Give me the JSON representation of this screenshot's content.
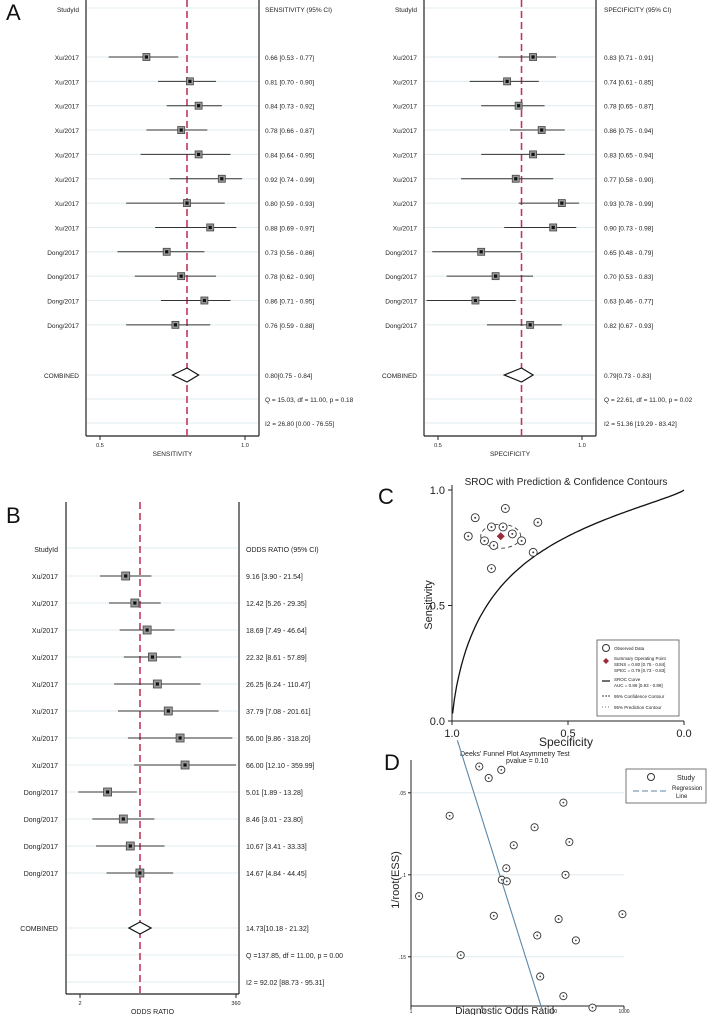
{
  "panels": {
    "A": "A",
    "B": "B",
    "C": "C",
    "D": "D"
  },
  "chart_data": [
    {
      "id": "sens",
      "type": "forest",
      "col_study": "StudyId",
      "col_ci": "SENSITIVITY (95% CI)",
      "xlabel": "SENSITIVITY",
      "xlim": [
        0.5,
        1.0
      ],
      "xticks": [
        "0.5",
        "1.0"
      ],
      "ref": 0.8,
      "studies": [
        {
          "label": "Xu/2017",
          "est": 0.66,
          "lo": 0.53,
          "hi": 0.77,
          "text": "0.66 [0.53 - 0.77]"
        },
        {
          "label": "Xu/2017",
          "est": 0.81,
          "lo": 0.7,
          "hi": 0.9,
          "text": "0.81 [0.70 - 0.90]"
        },
        {
          "label": "Xu/2017",
          "est": 0.84,
          "lo": 0.73,
          "hi": 0.92,
          "text": "0.84 [0.73 - 0.92]"
        },
        {
          "label": "Xu/2017",
          "est": 0.78,
          "lo": 0.66,
          "hi": 0.87,
          "text": "0.78 [0.66 - 0.87]"
        },
        {
          "label": "Xu/2017",
          "est": 0.84,
          "lo": 0.64,
          "hi": 0.95,
          "text": "0.84 [0.64 - 0.95]"
        },
        {
          "label": "Xu/2017",
          "est": 0.92,
          "lo": 0.74,
          "hi": 0.99,
          "text": "0.92 [0.74 - 0.99]"
        },
        {
          "label": "Xu/2017",
          "est": 0.8,
          "lo": 0.59,
          "hi": 0.93,
          "text": "0.80 [0.59 - 0.93]"
        },
        {
          "label": "Xu/2017",
          "est": 0.88,
          "lo": 0.69,
          "hi": 0.97,
          "text": "0.88 [0.69 - 0.97]"
        },
        {
          "label": "Dong/2017",
          "est": 0.73,
          "lo": 0.56,
          "hi": 0.86,
          "text": "0.73 [0.56 - 0.86]"
        },
        {
          "label": "Dong/2017",
          "est": 0.78,
          "lo": 0.62,
          "hi": 0.9,
          "text": "0.78 [0.62 - 0.90]"
        },
        {
          "label": "Dong/2017",
          "est": 0.86,
          "lo": 0.71,
          "hi": 0.95,
          "text": "0.86 [0.71 - 0.95]"
        },
        {
          "label": "Dong/2017",
          "est": 0.76,
          "lo": 0.59,
          "hi": 0.88,
          "text": "0.76 [0.59 - 0.88]"
        }
      ],
      "combined": {
        "label": "COMBINED",
        "est": 0.8,
        "lo": 0.75,
        "hi": 0.84,
        "text": "0.80[0.75 - 0.84]"
      },
      "stats": [
        "Q = 15.03, df = 11.00, p =  0.18",
        "I2 = 26.80 [0.00 - 76.55]"
      ]
    },
    {
      "id": "spec",
      "type": "forest",
      "col_study": "StudyId",
      "col_ci": "SPECIFICITY (95% CI)",
      "xlabel": "SPECIFICITY",
      "xlim": [
        0.5,
        1.0
      ],
      "xticks": [
        "0.5",
        "1.0"
      ],
      "ref": 0.79,
      "studies": [
        {
          "label": "Xu/2017",
          "est": 0.83,
          "lo": 0.71,
          "hi": 0.91,
          "text": "0.83 [0.71 - 0.91]"
        },
        {
          "label": "Xu/2017",
          "est": 0.74,
          "lo": 0.61,
          "hi": 0.85,
          "text": "0.74 [0.61 - 0.85]"
        },
        {
          "label": "Xu/2017",
          "est": 0.78,
          "lo": 0.65,
          "hi": 0.87,
          "text": "0.78 [0.65 - 0.87]"
        },
        {
          "label": "Xu/2017",
          "est": 0.86,
          "lo": 0.75,
          "hi": 0.94,
          "text": "0.86 [0.75 - 0.94]"
        },
        {
          "label": "Xu/2017",
          "est": 0.83,
          "lo": 0.65,
          "hi": 0.94,
          "text": "0.83 [0.65 - 0.94]"
        },
        {
          "label": "Xu/2017",
          "est": 0.77,
          "lo": 0.58,
          "hi": 0.9,
          "text": "0.77 [0.58 - 0.90]"
        },
        {
          "label": "Xu/2017",
          "est": 0.93,
          "lo": 0.78,
          "hi": 0.99,
          "text": "0.93 [0.78 - 0.99]"
        },
        {
          "label": "Xu/2017",
          "est": 0.9,
          "lo": 0.73,
          "hi": 0.98,
          "text": "0.90 [0.73 - 0.98]"
        },
        {
          "label": "Dong/2017",
          "est": 0.65,
          "lo": 0.48,
          "hi": 0.79,
          "text": "0.65 [0.48 - 0.79]"
        },
        {
          "label": "Dong/2017",
          "est": 0.7,
          "lo": 0.53,
          "hi": 0.83,
          "text": "0.70 [0.53 - 0.83]"
        },
        {
          "label": "Dong/2017",
          "est": 0.63,
          "lo": 0.46,
          "hi": 0.77,
          "text": "0.63 [0.46 - 0.77]"
        },
        {
          "label": "Dong/2017",
          "est": 0.82,
          "lo": 0.67,
          "hi": 0.93,
          "text": "0.82 [0.67 - 0.93]"
        }
      ],
      "combined": {
        "label": "COMBINED",
        "est": 0.79,
        "lo": 0.73,
        "hi": 0.83,
        "text": "0.79[0.73 - 0.83]"
      },
      "stats": [
        "Q = 22.61, df = 11.00, p =  0.02",
        "I2 = 51.36 [19.29 - 83.42]"
      ]
    },
    {
      "id": "or",
      "type": "forest",
      "log_scale": true,
      "col_study": "StudyId",
      "col_ci": "ODDS RATIO (95% CI)",
      "xlabel": "ODDS RATIO",
      "xlim": [
        2,
        360
      ],
      "xticks": [
        "2",
        "360"
      ],
      "ref": 14.73,
      "studies": [
        {
          "label": "Xu/2017",
          "est": 9.16,
          "lo": 3.9,
          "hi": 21.54,
          "text": "9.16 [3.90 - 21.54]"
        },
        {
          "label": "Xu/2017",
          "est": 12.42,
          "lo": 5.26,
          "hi": 29.35,
          "text": "12.42 [5.26 - 29.35]"
        },
        {
          "label": "Xu/2017",
          "est": 18.69,
          "lo": 7.49,
          "hi": 46.64,
          "text": "18.69 [7.49 - 46.64]"
        },
        {
          "label": "Xu/2017",
          "est": 22.32,
          "lo": 8.61,
          "hi": 57.89,
          "text": "22.32 [8.61 - 57.89]"
        },
        {
          "label": "Xu/2017",
          "est": 26.25,
          "lo": 6.24,
          "hi": 110.47,
          "text": "26.25 [6.24 - 110.47]"
        },
        {
          "label": "Xu/2017",
          "est": 37.79,
          "lo": 7.08,
          "hi": 201.61,
          "text": "37.79 [7.08 - 201.61]"
        },
        {
          "label": "Xu/2017",
          "est": 56.0,
          "lo": 9.86,
          "hi": 318.2,
          "text": "56.00 [9.86 - 318.20]"
        },
        {
          "label": "Xu/2017",
          "est": 66.0,
          "lo": 12.1,
          "hi": 359.99,
          "text": "66.00 [12.10 - 359.99]"
        },
        {
          "label": "Dong/2017",
          "est": 5.01,
          "lo": 1.89,
          "hi": 13.28,
          "text": "5.01 [1.89 - 13.28]"
        },
        {
          "label": "Dong/2017",
          "est": 8.46,
          "lo": 3.01,
          "hi": 23.8,
          "text": "8.46 [3.01 - 23.80]"
        },
        {
          "label": "Dong/2017",
          "est": 10.67,
          "lo": 3.41,
          "hi": 33.33,
          "text": "10.67 [3.41 - 33.33]"
        },
        {
          "label": "Dong/2017",
          "est": 14.67,
          "lo": 4.84,
          "hi": 44.45,
          "text": "14.67 [4.84 - 44.45]"
        }
      ],
      "combined": {
        "label": "COMBINED",
        "est": 14.73,
        "lo": 10.18,
        "hi": 21.32,
        "text": "14.73[10.18 - 21.32]"
      },
      "stats": [
        "Q =137.85, df = 11.00, p =  0.00",
        "I2 = 92.02 [88.73 - 95.31]"
      ]
    },
    {
      "id": "sroc",
      "type": "scatter",
      "title": "SROC with Prediction & Confidence Contours",
      "xlabel": "Specificity",
      "ylabel": "Sensitivity",
      "xlim": [
        1.0,
        0.0
      ],
      "ylim": [
        0.0,
        1.0
      ],
      "xticks": [
        "1.0",
        "0.5",
        "0.0"
      ],
      "yticks": [
        "0.0",
        "0.5",
        "1.0"
      ],
      "points": [
        {
          "spec": 0.83,
          "sens": 0.66
        },
        {
          "spec": 0.74,
          "sens": 0.81
        },
        {
          "spec": 0.78,
          "sens": 0.84
        },
        {
          "spec": 0.86,
          "sens": 0.78
        },
        {
          "spec": 0.83,
          "sens": 0.84
        },
        {
          "spec": 0.77,
          "sens": 0.92
        },
        {
          "spec": 0.93,
          "sens": 0.8
        },
        {
          "spec": 0.9,
          "sens": 0.88
        },
        {
          "spec": 0.65,
          "sens": 0.73
        },
        {
          "spec": 0.7,
          "sens": 0.78
        },
        {
          "spec": 0.63,
          "sens": 0.86
        },
        {
          "spec": 0.82,
          "sens": 0.76
        }
      ],
      "summary": {
        "spec": 0.79,
        "sens": 0.8
      },
      "legend": [
        "Observed Data",
        "Summary Operating Point",
        "SENS = 0.80 [0.75 - 0.84]",
        "SPEC = 0.79 [0.73 - 0.83]",
        "SROC Curve",
        "AUC = 0.86 [0.83 - 0.89]",
        "95% Confidence Contour",
        "95% Prediction Contour"
      ],
      "legend_position": "bottom-right"
    },
    {
      "id": "funnel",
      "type": "scatter",
      "title": "Deeks' Funnel Plot Asymmetry Test",
      "subtitle": "pvalue =  0.10",
      "xlabel": "Diagnostic Odds Ratio",
      "ylabel": "1/root(ESS)",
      "x_log": true,
      "xlim": [
        1,
        1000
      ],
      "xticks": [
        "1",
        "10",
        "100",
        "1000"
      ],
      "yticks": [
        ".05",
        ".1",
        ".15"
      ],
      "ylim_reversed": [
        0.03,
        0.18
      ],
      "points": [
        {
          "x": 9.16,
          "y": 0.034
        },
        {
          "x": 12.42,
          "y": 0.041
        },
        {
          "x": 18.69,
          "y": 0.036
        },
        {
          "x": 3.5,
          "y": 0.064
        },
        {
          "x": 55,
          "y": 0.071
        },
        {
          "x": 140,
          "y": 0.056
        },
        {
          "x": 28,
          "y": 0.082
        },
        {
          "x": 170,
          "y": 0.08
        },
        {
          "x": 22,
          "y": 0.096
        },
        {
          "x": 19,
          "y": 0.103
        },
        {
          "x": 22.32,
          "y": 0.104
        },
        {
          "x": 150,
          "y": 0.1
        },
        {
          "x": 1.3,
          "y": 0.113
        },
        {
          "x": 14.67,
          "y": 0.125
        },
        {
          "x": 60,
          "y": 0.137
        },
        {
          "x": 120,
          "y": 0.127
        },
        {
          "x": 210,
          "y": 0.14
        },
        {
          "x": 950,
          "y": 0.124
        },
        {
          "x": 5.01,
          "y": 0.149
        },
        {
          "x": 66,
          "y": 0.162
        },
        {
          "x": 140,
          "y": 0.174
        },
        {
          "x": 360,
          "y": 0.181
        }
      ],
      "regression": [
        {
          "x": 4.5,
          "y": 0.018
        },
        {
          "x": 70,
          "y": 0.182
        }
      ],
      "legend": [
        "Study",
        "Regression",
        "Line"
      ],
      "legend_position": "top-right"
    }
  ]
}
